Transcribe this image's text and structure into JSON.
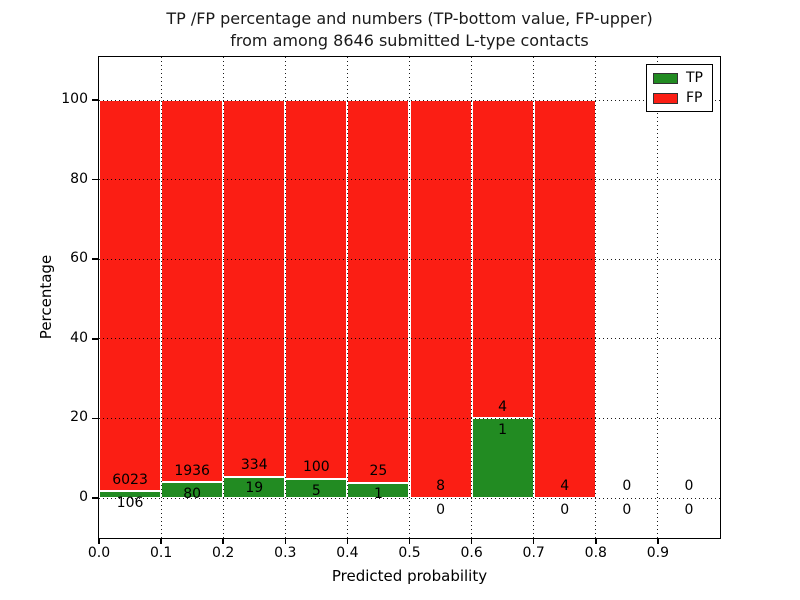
{
  "title": {
    "line1": "TP /FP percentage and numbers (TP-bottom value, FP-upper)",
    "line2": "from among 8646 submitted L-type contacts"
  },
  "axes": {
    "xlabel": "Predicted probability",
    "ylabel": "Percentage",
    "xticks": [
      "0.0",
      "0.1",
      "0.2",
      "0.3",
      "0.4",
      "0.5",
      "0.6",
      "0.7",
      "0.8",
      "0.9"
    ],
    "yticks": [
      "0",
      "20",
      "40",
      "60",
      "80",
      "100"
    ],
    "xlim": [
      0.0,
      1.0
    ],
    "ylim": [
      -10.5,
      110.5
    ],
    "grid": "dotted black, drawn above bars"
  },
  "legend": {
    "position": "upper-right",
    "items": [
      {
        "label": "TP",
        "color": "#228b22"
      },
      {
        "label": "FP",
        "color": "#fb1e14"
      }
    ]
  },
  "chart_data": {
    "type": "bar",
    "stacked": true,
    "normalized": "each bin scaled to 100% (TP% bottom green, FP% upper red)",
    "title": "TP /FP percentage and numbers (TP-bottom value, FP-upper) from among 8646 submitted L-type contacts",
    "xlabel": "Predicted probability",
    "ylabel": "Percentage",
    "total_submitted": 8646,
    "bin_width": 0.1,
    "colors": {
      "tp": "#228b22",
      "fp": "#fb1e14"
    },
    "bins": [
      {
        "x0": 0.0,
        "x1": 0.1,
        "tp": 106,
        "fp": 6023,
        "tp_pct": 1.73
      },
      {
        "x0": 0.1,
        "x1": 0.2,
        "tp": 80,
        "fp": 1936,
        "tp_pct": 3.97
      },
      {
        "x0": 0.2,
        "x1": 0.3,
        "tp": 19,
        "fp": 334,
        "tp_pct": 5.38
      },
      {
        "x0": 0.3,
        "x1": 0.4,
        "tp": 5,
        "fp": 100,
        "tp_pct": 4.76
      },
      {
        "x0": 0.4,
        "x1": 0.5,
        "tp": 1,
        "fp": 25,
        "tp_pct": 3.85
      },
      {
        "x0": 0.5,
        "x1": 0.6,
        "tp": 0,
        "fp": 8,
        "tp_pct": 0
      },
      {
        "x0": 0.6,
        "x1": 0.7,
        "tp": 1,
        "fp": 4,
        "tp_pct": 20
      },
      {
        "x0": 0.7,
        "x1": 0.8,
        "tp": 0,
        "fp": 4,
        "tp_pct": 0
      },
      {
        "x0": 0.8,
        "x1": 0.9,
        "tp": 0,
        "fp": 0,
        "tp_pct": null
      },
      {
        "x0": 0.9,
        "x1": 1.0,
        "tp": 0,
        "fp": 0,
        "tp_pct": null
      }
    ]
  }
}
